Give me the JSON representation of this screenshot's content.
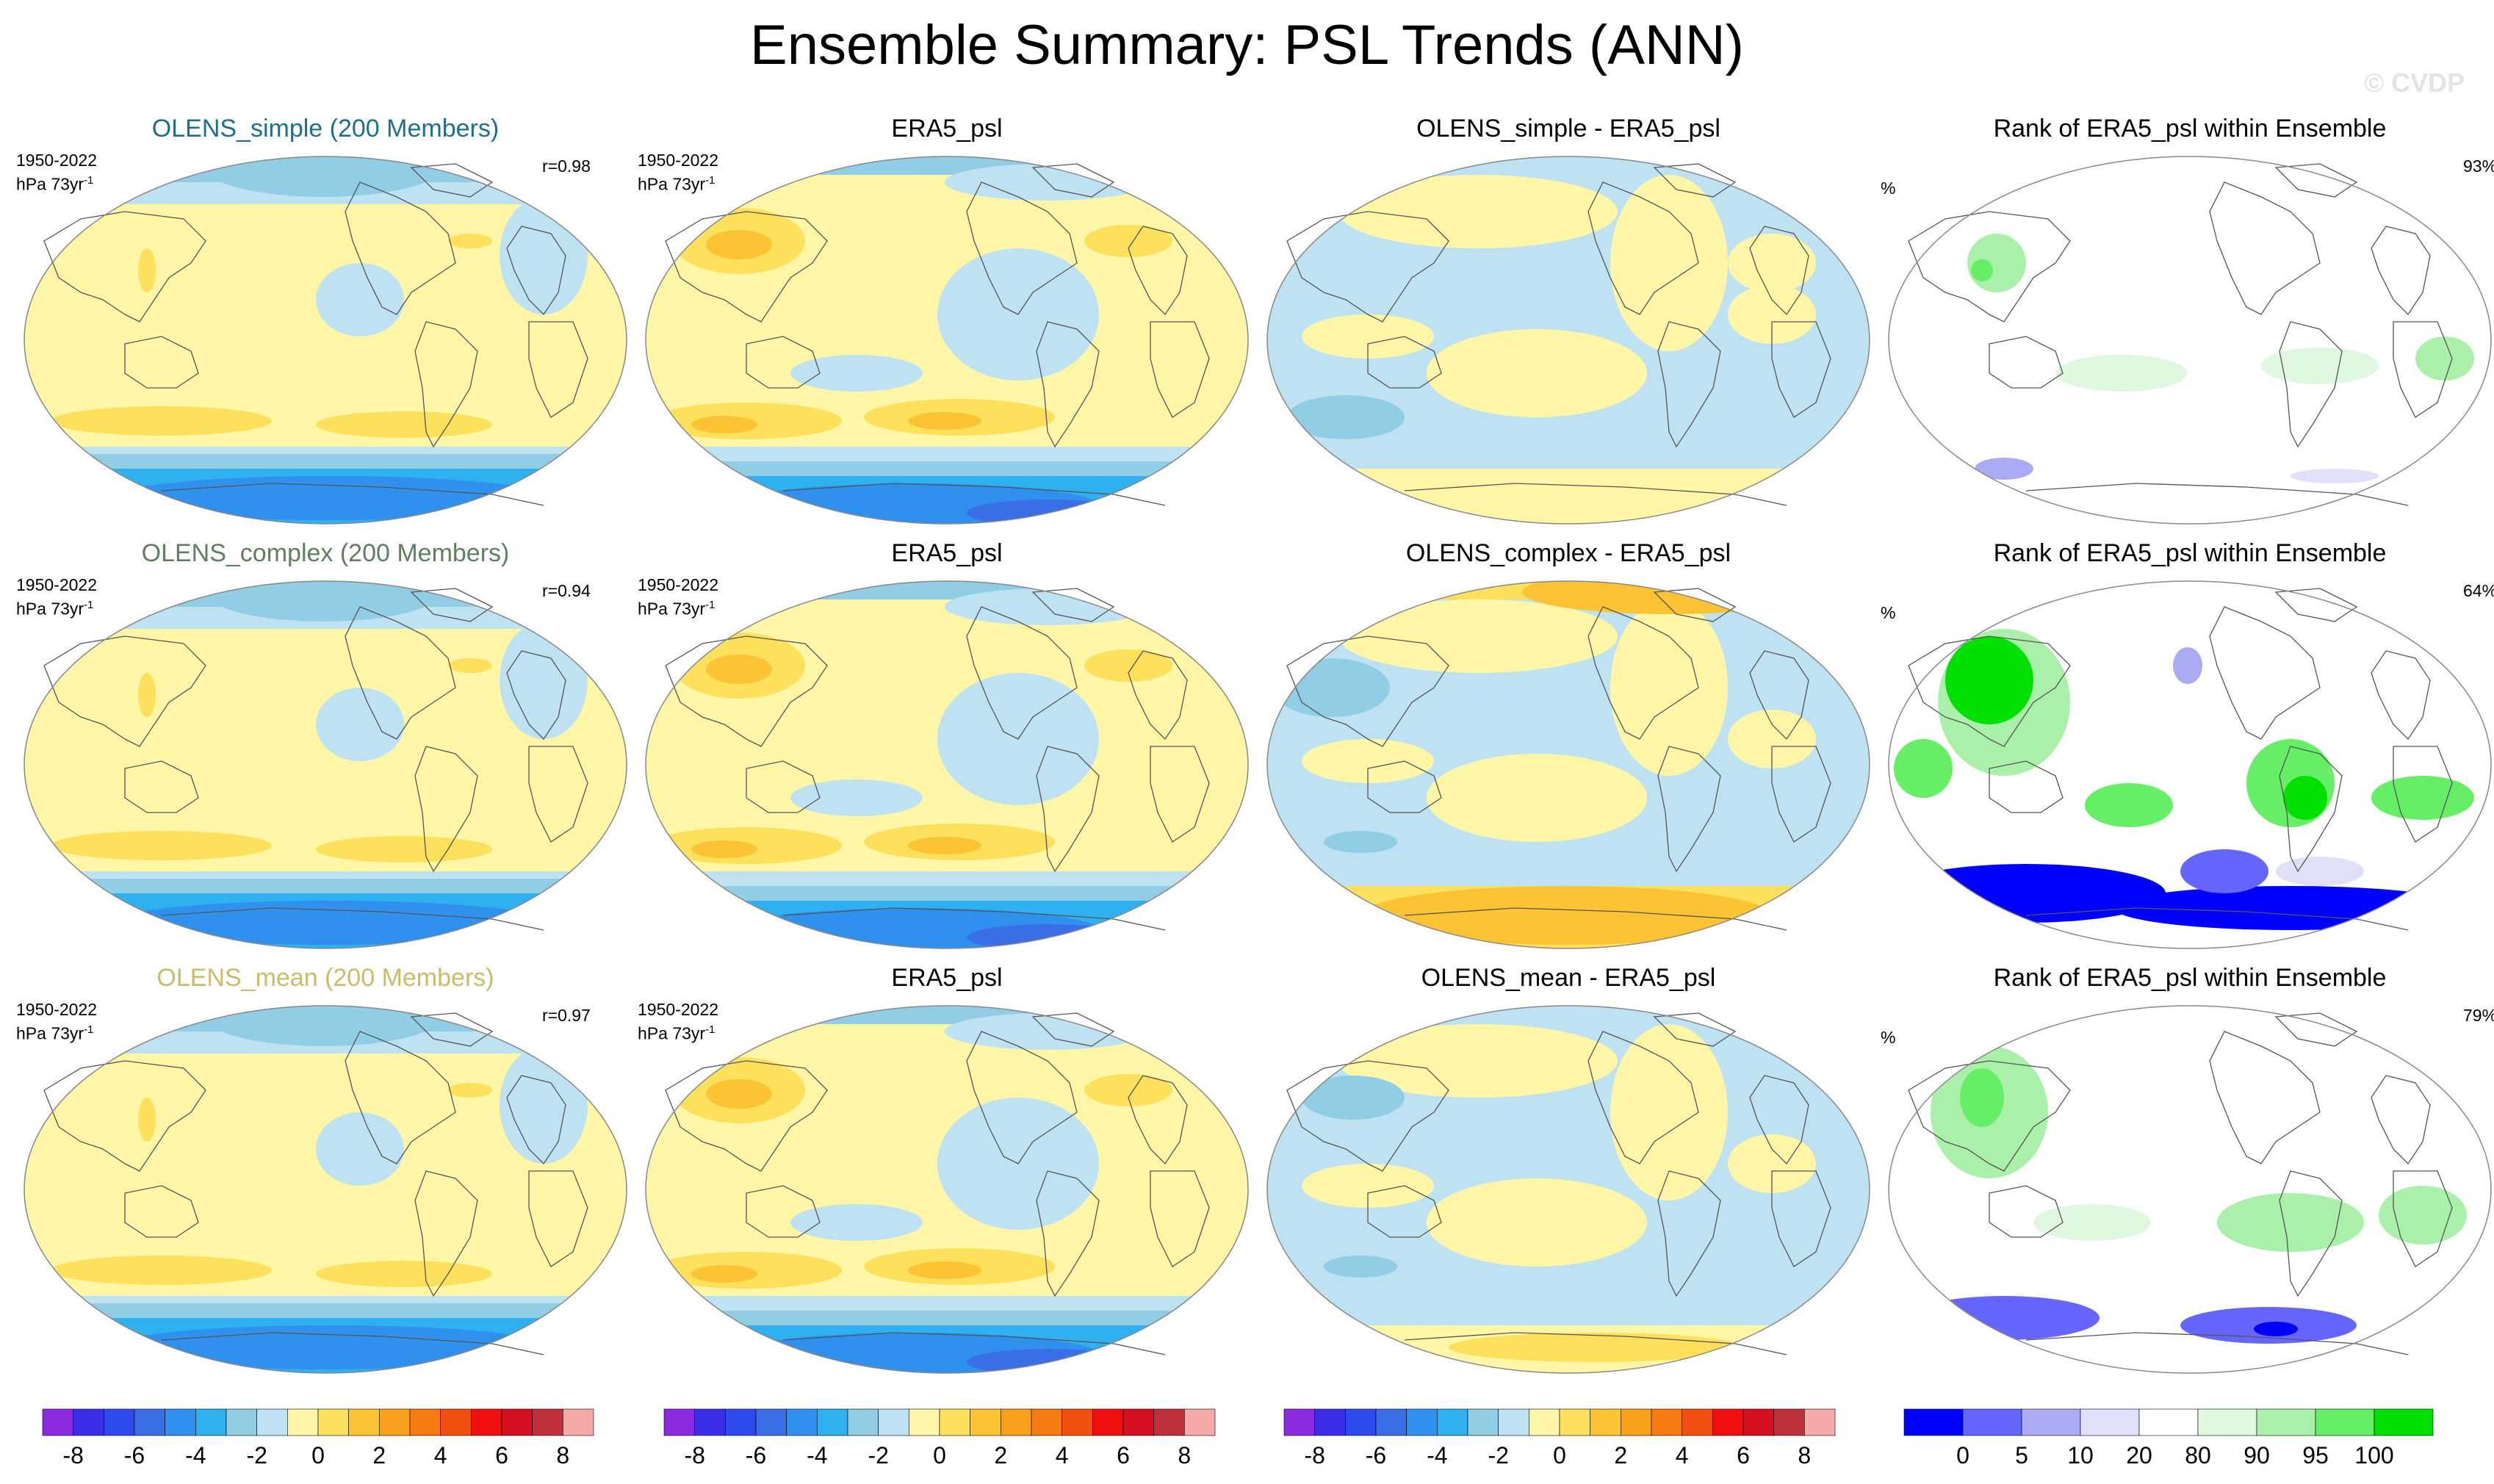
{
  "title": "Ensemble Summary: PSL Trends (ANN)",
  "watermark": "© CVDP",
  "rows": [
    {
      "ensemble_title": "OLENS_simple (200 Members)",
      "ensemble_title_color": "#1f6f8b",
      "period": "1950-2022",
      "units": "hPa 73yr",
      "units_sup": "-1",
      "r_value": "r=0.98",
      "obs_title": "ERA5_psl",
      "diff_title": "OLENS_simple - ERA5_psl",
      "rank_title": "Rank of ERA5_psl within Ensemble",
      "rank_unit": "%",
      "rank_pct": "93%"
    },
    {
      "ensemble_title": "OLENS_complex (200 Members)",
      "ensemble_title_color": "#5f7f5f",
      "period": "1950-2022",
      "units": "hPa 73yr",
      "units_sup": "-1",
      "r_value": "r=0.94",
      "obs_title": "ERA5_psl",
      "diff_title": "OLENS_complex - ERA5_psl",
      "rank_title": "Rank of ERA5_psl within Ensemble",
      "rank_unit": "%",
      "rank_pct": "64%"
    },
    {
      "ensemble_title": "OLENS_mean (200 Members)",
      "ensemble_title_color": "#c9bc6a",
      "period": "1950-2022",
      "units": "hPa 73yr",
      "units_sup": "-1",
      "r_value": "r=0.97",
      "obs_title": "ERA5_psl",
      "diff_title": "OLENS_mean - ERA5_psl",
      "rank_title": "Rank of ERA5_psl within Ensemble",
      "rank_unit": "%",
      "rank_pct": "79%"
    }
  ],
  "colorbars": {
    "trend": {
      "labels": [
        "-8",
        "-6",
        "-4",
        "-2",
        "0",
        "2",
        "4",
        "6",
        "8"
      ],
      "colors": [
        "#8a2be2",
        "#3a2ee8",
        "#2f4bee",
        "#3a6ee6",
        "#2f90ee",
        "#2fb0f0",
        "#92cde6",
        "#bfe2f2",
        "#fff6a8",
        "#fde15c",
        "#fcc434",
        "#f9a11c",
        "#f77b10",
        "#f25010",
        "#f01010",
        "#d6101e",
        "#c0303a",
        "#f7a8a8"
      ]
    },
    "rank": {
      "labels": [
        "0",
        "5",
        "10",
        "20",
        "80",
        "90",
        "95",
        "100"
      ],
      "colors": [
        "#0000ff",
        "#6666ff",
        "#aaaaf5",
        "#e0e0f8",
        "#ffffff",
        "#e0f8e0",
        "#aaf0aa",
        "#66ee66",
        "#00e000"
      ]
    }
  }
}
